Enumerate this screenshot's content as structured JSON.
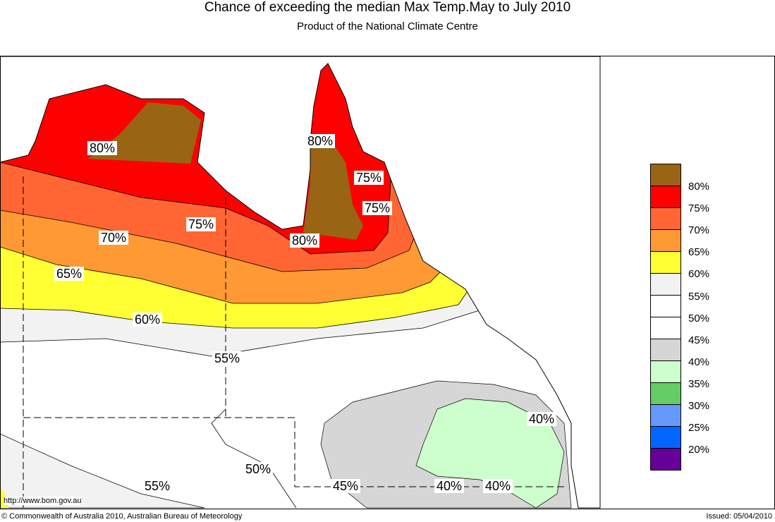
{
  "header": {
    "title": "Chance of exceeding the median Max Temp.May to July 2010",
    "subtitle": "Product of the National Climate Centre"
  },
  "map_labels": [
    {
      "text": "80%",
      "id": "nt-80"
    },
    {
      "text": "80%",
      "id": "cape-80"
    },
    {
      "text": "75%",
      "id": "cape-75a"
    },
    {
      "text": "75%",
      "id": "cape-75b"
    },
    {
      "text": "75%",
      "id": "gulf-75"
    },
    {
      "text": "80%",
      "id": "gulf-80"
    },
    {
      "text": "70%",
      "id": "w-70"
    },
    {
      "text": "65%",
      "id": "w-65"
    },
    {
      "text": "60%",
      "id": "w-60"
    },
    {
      "text": "55%",
      "id": "c-55"
    },
    {
      "text": "40%",
      "id": "e-40"
    },
    {
      "text": "50%",
      "id": "s-50"
    },
    {
      "text": "55%",
      "id": "sw-55"
    },
    {
      "text": "45%",
      "id": "s-45"
    },
    {
      "text": "40%",
      "id": "se-40a"
    },
    {
      "text": "40%",
      "id": "se-40b"
    }
  ],
  "legend": {
    "colors": [
      "#996515",
      "#ff0000",
      "#ff6633",
      "#ff9933",
      "#ffff33",
      "#f2f2f2",
      "#ffffff",
      "#ffffff",
      "#d6d6d6",
      "#ccffcc",
      "#66cc66",
      "#6699ff",
      "#0066ff",
      "#660099"
    ],
    "labels": [
      "80%",
      "75%",
      "70%",
      "65%",
      "60%",
      "55%",
      "50%",
      "45%",
      "40%",
      "35%",
      "30%",
      "25%",
      "20%"
    ]
  },
  "footer": {
    "url": "http://www.bom.gov.au",
    "copyright": "© Commonwealth of Australia 2010, Australian Bureau of Meteorology",
    "issued": "Issued: 05/04/2010"
  }
}
